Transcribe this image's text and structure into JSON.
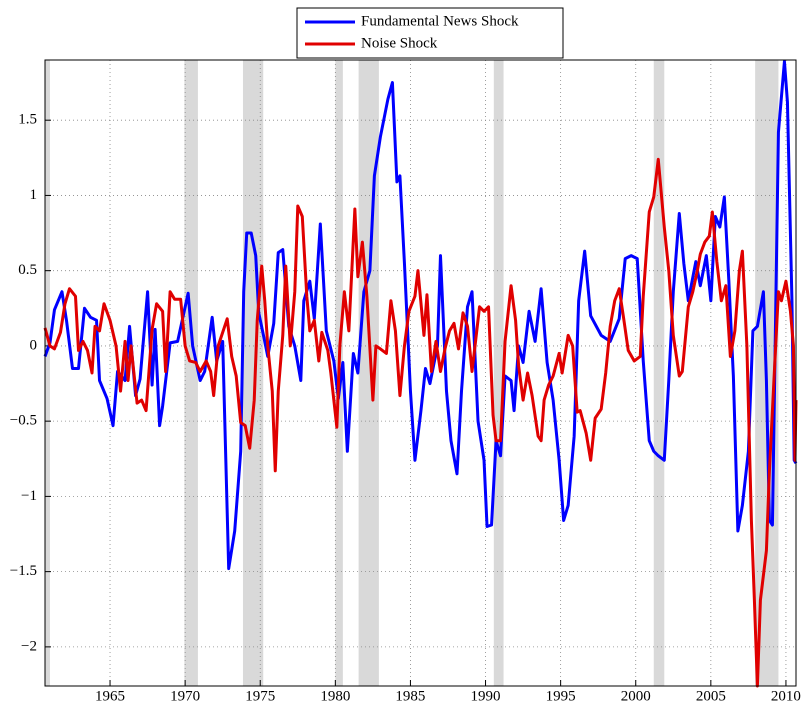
{
  "chart_data": {
    "type": "line",
    "xlim": [
      1960.67,
      2010.67
    ],
    "ylim": [
      -2.26,
      1.9
    ],
    "xticks": [
      1965,
      1970,
      1975,
      1980,
      1985,
      1990,
      1995,
      2000,
      2005,
      2010
    ],
    "yticks": [
      {
        "value": -2,
        "label": "−2"
      },
      {
        "value": -1.5,
        "label": "−1.5"
      },
      {
        "value": -1,
        "label": "−1"
      },
      {
        "value": -0.5,
        "label": "−0.5"
      },
      0,
      0.5,
      1,
      1.5
    ],
    "grid": true,
    "legend": "top-center",
    "shaded_regions": {
      "color": "#d9d9d9",
      "spans": [
        [
          1960.67,
          1961.0
        ],
        [
          1969.95,
          1970.85
        ],
        [
          1973.85,
          1975.2
        ],
        [
          1980.0,
          1980.5
        ],
        [
          1981.55,
          1982.9
        ],
        [
          1990.55,
          1991.2
        ],
        [
          2001.2,
          2001.9
        ],
        [
          2007.95,
          2009.5
        ]
      ]
    },
    "series": [
      {
        "name": "Fundamental News Shock",
        "color": "#0000ff",
        "x": [
          1960.67,
          1961.0,
          1961.3,
          1961.8,
          1962.1,
          1962.5,
          1962.9,
          1963.3,
          1963.7,
          1964.1,
          1964.3,
          1964.8,
          1965.2,
          1965.5,
          1966.0,
          1966.3,
          1966.7,
          1967.0,
          1967.5,
          1967.8,
          1968.0,
          1968.3,
          1968.5,
          1969.0,
          1969.5,
          1970.2,
          1970.5,
          1971.0,
          1971.3,
          1971.8,
          1972.1,
          1972.5,
          1972.9,
          1973.3,
          1973.7,
          1973.9,
          1974.1,
          1974.4,
          1974.7,
          1974.9,
          1975.3,
          1975.5,
          1975.9,
          1976.2,
          1976.5,
          1976.9,
          1977.3,
          1977.7,
          1977.9,
          1978.3,
          1978.6,
          1979.0,
          1979.4,
          1979.9,
          1980.2,
          1980.5,
          1980.8,
          1981.2,
          1981.5,
          1981.9,
          1982.3,
          1982.6,
          1983.0,
          1983.5,
          1983.8,
          1984.1,
          1984.3,
          1984.6,
          1985.0,
          1985.3,
          1985.7,
          1986.0,
          1986.3,
          1986.8,
          1987.0,
          1987.4,
          1987.7,
          1988.1,
          1988.4,
          1988.8,
          1989.1,
          1989.5,
          1989.9,
          1990.1,
          1990.4,
          1990.7,
          1991.0,
          1991.3,
          1991.7,
          1991.9,
          1992.2,
          1992.5,
          1992.9,
          1993.3,
          1993.7,
          1994.1,
          1994.5,
          1994.9,
          1995.2,
          1995.5,
          1995.9,
          1996.2,
          1996.6,
          1997.0,
          1997.7,
          1998.3,
          1998.9,
          1999.3,
          1999.7,
          2000.1,
          2000.5,
          2000.9,
          2001.2,
          2001.5,
          2001.9,
          2002.2,
          2002.5,
          2002.9,
          2003.2,
          2003.5,
          2004.0,
          2004.3,
          2004.7,
          2005.0,
          2005.3,
          2005.6,
          2005.9,
          2006.2,
          2006.5,
          2006.8,
          2007.1,
          2007.5,
          2007.8,
          2008.1,
          2008.5,
          2008.7,
          2008.9,
          2009.1,
          2009.5,
          2009.9,
          2010.1,
          2010.4,
          2010.55,
          2010.67
        ],
        "values": [
          -0.07,
          0.02,
          0.24,
          0.36,
          0.17,
          -0.15,
          -0.15,
          0.25,
          0.19,
          0.17,
          -0.23,
          -0.35,
          -0.53,
          -0.17,
          -0.23,
          0.13,
          -0.33,
          -0.22,
          0.36,
          -0.26,
          0.11,
          -0.53,
          -0.4,
          0.02,
          0.03,
          0.35,
          0,
          -0.23,
          -0.17,
          0.19,
          -0.1,
          0.03,
          -1.48,
          -1.23,
          -0.7,
          0.36,
          0.75,
          0.75,
          0.6,
          0.22,
          0.03,
          -0.07,
          0.15,
          0.62,
          0.64,
          0.13,
          0,
          -0.23,
          0.3,
          0.43,
          0.18,
          0.81,
          0.1,
          -0.1,
          -0.35,
          -0.11,
          -0.7,
          -0.05,
          -0.18,
          0.36,
          0.5,
          1.13,
          1.39,
          1.64,
          1.75,
          1.09,
          1.13,
          0.55,
          -0.3,
          -0.76,
          -0.43,
          -0.15,
          -0.25,
          0,
          0.6,
          -0.3,
          -0.63,
          -0.85,
          -0.3,
          0.26,
          0.36,
          -0.5,
          -0.76,
          -1.2,
          -1.19,
          -0.63,
          -0.73,
          -0.2,
          -0.23,
          -0.43,
          0,
          -0.11,
          0.23,
          0.03,
          0.38,
          -0.11,
          -0.36,
          -0.76,
          -1.16,
          -1.06,
          -0.6,
          0.3,
          0.63,
          0.2,
          0.07,
          0.03,
          0.18,
          0.58,
          0.6,
          0.58,
          -0.1,
          -0.63,
          -0.7,
          -0.73,
          -0.76,
          -0.23,
          0.36,
          0.88,
          0.55,
          0.3,
          0.56,
          0.4,
          0.6,
          0.3,
          0.86,
          0.79,
          0.99,
          0.43,
          -0.2,
          -1.23,
          -1.06,
          -0.7,
          0.1,
          0.13,
          0.36,
          -0.23,
          -1.16,
          -1.19,
          1.42,
          1.89,
          1.62,
          0.3,
          -0.76,
          -0.78
        ]
      },
      {
        "name": "Noise Shock",
        "color": "#e00000",
        "x": [
          1960.67,
          1961.0,
          1961.3,
          1961.7,
          1962.0,
          1962.3,
          1962.7,
          1962.9,
          1963.2,
          1963.5,
          1963.8,
          1964.0,
          1964.3,
          1964.6,
          1965.0,
          1965.4,
          1965.7,
          1966.0,
          1966.2,
          1966.4,
          1966.8,
          1967.1,
          1967.4,
          1967.8,
          1968.1,
          1968.5,
          1968.7,
          1969.0,
          1969.3,
          1969.7,
          1970.0,
          1970.3,
          1970.7,
          1971.0,
          1971.4,
          1971.7,
          1971.9,
          1972.2,
          1972.5,
          1972.8,
          1973.1,
          1973.4,
          1973.7,
          1974.0,
          1974.3,
          1974.6,
          1974.8,
          1975.1,
          1975.3,
          1975.5,
          1975.8,
          1976.0,
          1976.2,
          1976.5,
          1976.7,
          1977.0,
          1977.3,
          1977.5,
          1977.8,
          1978.1,
          1978.3,
          1978.6,
          1978.9,
          1979.1,
          1979.5,
          1979.7,
          1980.1,
          1980.3,
          1980.6,
          1980.9,
          1981.3,
          1981.5,
          1981.8,
          1982.1,
          1982.5,
          1982.7,
          1983.0,
          1983.4,
          1983.7,
          1984.0,
          1984.3,
          1984.6,
          1984.9,
          1985.3,
          1985.5,
          1985.9,
          1986.1,
          1986.4,
          1986.7,
          1987.0,
          1987.3,
          1987.6,
          1987.9,
          1988.2,
          1988.5,
          1988.8,
          1989.1,
          1989.3,
          1989.6,
          1989.9,
          1990.2,
          1990.5,
          1990.7,
          1991.0,
          1991.3,
          1991.7,
          1992.0,
          1992.2,
          1992.5,
          1992.8,
          1993.1,
          1993.5,
          1993.7,
          1993.9,
          1994.2,
          1994.5,
          1994.9,
          1995.1,
          1995.5,
          1995.8,
          1996.1,
          1996.3,
          1996.7,
          1997.0,
          1997.3,
          1997.7,
          1998.0,
          1998.3,
          1998.6,
          1998.9,
          1999.2,
          1999.5,
          1999.9,
          2000.3,
          2000.5,
          2000.9,
          2001.2,
          2001.5,
          2001.9,
          2002.2,
          2002.5,
          2002.9,
          2003.1,
          2003.5,
          2003.8,
          2004.1,
          2004.3,
          2004.6,
          2004.9,
          2005.1,
          2005.4,
          2005.7,
          2006.0,
          2006.3,
          2006.6,
          2006.9,
          2007.1,
          2007.4,
          2007.7,
          2007.9,
          2008.1,
          2008.3,
          2008.7,
          2008.9,
          2009.2,
          2009.5,
          2009.7,
          2010.0,
          2010.3,
          2010.5,
          2010.6,
          2010.67
        ],
        "values": [
          0.12,
          0,
          -0.02,
          0.09,
          0.28,
          0.38,
          0.33,
          -0.03,
          0.03,
          -0.03,
          -0.18,
          0.13,
          0.1,
          0.28,
          0.17,
          0,
          -0.3,
          0.03,
          -0.23,
          0,
          -0.38,
          -0.36,
          -0.43,
          0.11,
          0.28,
          0.23,
          -0.17,
          0.36,
          0.31,
          0.31,
          0,
          -0.1,
          -0.11,
          -0.17,
          -0.1,
          -0.17,
          -0.33,
          0,
          0.09,
          0.18,
          -0.07,
          -0.2,
          -0.51,
          -0.53,
          -0.68,
          -0.36,
          0.17,
          0.53,
          0.3,
          0,
          -0.3,
          -0.83,
          -0.3,
          0.07,
          0.53,
          0,
          0.36,
          0.93,
          0.86,
          0.33,
          0.1,
          0.17,
          -0.1,
          0.09,
          -0.03,
          -0.18,
          -0.54,
          0,
          0.36,
          0.1,
          0.91,
          0.46,
          0.69,
          0.33,
          -0.36,
          0,
          -0.02,
          -0.05,
          0.3,
          0.1,
          -0.33,
          0,
          0.23,
          0.33,
          0.5,
          0.07,
          0.34,
          -0.17,
          0.03,
          -0.17,
          -0.02,
          0.1,
          0.15,
          -0.02,
          0.22,
          0.13,
          -0.17,
          0,
          0.26,
          0.23,
          0.26,
          -0.46,
          -0.63,
          -0.63,
          0.03,
          0.4,
          0.17,
          -0.13,
          -0.36,
          -0.18,
          -0.33,
          -0.6,
          -0.63,
          -0.36,
          -0.26,
          -0.2,
          -0.05,
          -0.18,
          0.07,
          0,
          -0.44,
          -0.43,
          -0.58,
          -0.76,
          -0.48,
          -0.42,
          -0.18,
          0.13,
          0.3,
          0.38,
          0.18,
          -0.03,
          -0.1,
          -0.07,
          0.33,
          0.89,
          0.99,
          1.24,
          0.79,
          0.5,
          0.07,
          -0.2,
          -0.17,
          0.26,
          0.36,
          0.5,
          0.61,
          0.69,
          0.73,
          0.89,
          0.56,
          0.3,
          0.4,
          -0.07,
          0.1,
          0.5,
          0.63,
          0,
          -1.16,
          -1.69,
          -2.26,
          -1.69,
          -1.36,
          -0.83,
          -0.23,
          0.36,
          0.3,
          0.43,
          0.23,
          0,
          -0.76,
          -0.36
        ]
      }
    ]
  }
}
